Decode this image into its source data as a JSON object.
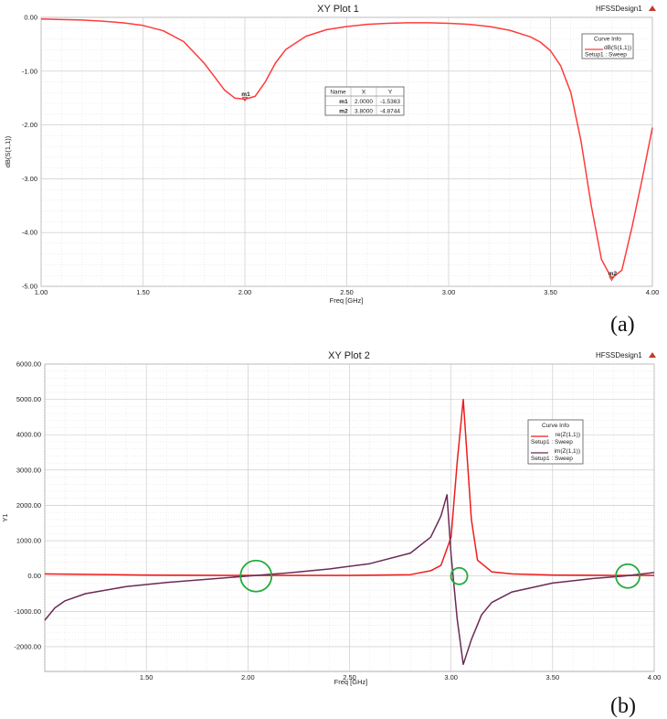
{
  "chart_data": [
    {
      "type": "line",
      "title": "XY Plot 1",
      "design": "HFSSDesign1",
      "xlabel": "Freq [GHz]",
      "ylabel": "dB(S(1,1))",
      "xlim": [
        1.0,
        4.0
      ],
      "ylim": [
        -5.0,
        0.0
      ],
      "xticks": [
        1.0,
        1.5,
        2.0,
        2.5,
        3.0,
        3.5,
        4.0
      ],
      "xtick_labels": [
        "1.00",
        "1.50",
        "2.00",
        "2.50",
        "3.00",
        "3.50",
        "4.00"
      ],
      "yticks": [
        0.0,
        -1.0,
        -2.0,
        -3.0,
        -4.0,
        -5.0
      ],
      "ytick_labels": [
        "0.00",
        "-1.00",
        "-2.00",
        "-3.00",
        "-4.00",
        "-5.00"
      ],
      "grid": true,
      "legend_title": "Curve Info",
      "legend_placement": "top-right",
      "series": [
        {
          "name": "dB(S(1,1))",
          "sub": "Setup1 : Sweep",
          "color": "#ff3b3b",
          "x": [
            1.0,
            1.1,
            1.2,
            1.3,
            1.4,
            1.5,
            1.6,
            1.7,
            1.8,
            1.85,
            1.9,
            1.95,
            2.0,
            2.05,
            2.1,
            2.15,
            2.2,
            2.3,
            2.4,
            2.5,
            2.6,
            2.7,
            2.8,
            2.9,
            3.0,
            3.1,
            3.2,
            3.3,
            3.4,
            3.45,
            3.5,
            3.55,
            3.6,
            3.65,
            3.7,
            3.75,
            3.8,
            3.85,
            3.9,
            3.95,
            4.0
          ],
          "y": [
            -0.03,
            -0.04,
            -0.05,
            -0.07,
            -0.1,
            -0.15,
            -0.25,
            -0.45,
            -0.85,
            -1.1,
            -1.35,
            -1.5,
            -1.52,
            -1.47,
            -1.2,
            -0.85,
            -0.6,
            -0.35,
            -0.23,
            -0.17,
            -0.13,
            -0.11,
            -0.1,
            -0.1,
            -0.11,
            -0.13,
            -0.17,
            -0.24,
            -0.36,
            -0.46,
            -0.62,
            -0.9,
            -1.4,
            -2.3,
            -3.5,
            -4.5,
            -4.85,
            -4.7,
            -3.9,
            -3.0,
            -2.05
          ]
        }
      ],
      "markers": [
        {
          "name": "m1",
          "x": 2.0,
          "y": -1.5363,
          "x_label": "2.0000",
          "y_label": "-1.5363"
        },
        {
          "name": "m2",
          "x": 3.8,
          "y": -4.8744,
          "x_label": "3.8000",
          "y_label": "-4.8744"
        }
      ],
      "marker_table": {
        "headers": [
          "Name",
          "X",
          "Y"
        ]
      }
    },
    {
      "type": "line",
      "title": "XY Plot 2",
      "design": "HFSSDesign1",
      "xlabel": "Freq [GHz]",
      "ylabel": "Y1",
      "xlim": [
        1.0,
        4.0
      ],
      "ylim": [
        -2700,
        6000
      ],
      "xticks": [
        1.5,
        2.0,
        2.5,
        3.0,
        3.5,
        4.0
      ],
      "xtick_labels": [
        "1.50",
        "2.00",
        "2.50",
        "3.00",
        "3.50",
        "4.00"
      ],
      "yticks": [
        6000,
        5000,
        4000,
        3000,
        2000,
        1000,
        0,
        -1000,
        -2000
      ],
      "ytick_labels": [
        "6000.00",
        "5000.00",
        "4000.00",
        "3000.00",
        "2000.00",
        "1000.00",
        "0.00",
        "-1000.00",
        "-2000.00"
      ],
      "grid": true,
      "legend_title": "Curve Info",
      "legend_placement": "top-right",
      "series": [
        {
          "name": "re(Z(1,1))",
          "sub": "Setup1 : Sweep",
          "color": "#ee1c1c",
          "x": [
            1.0,
            1.5,
            2.0,
            2.5,
            2.8,
            2.9,
            2.95,
            3.0,
            3.03,
            3.06,
            3.1,
            3.13,
            3.2,
            3.3,
            3.5,
            3.8,
            4.0
          ],
          "y": [
            60,
            30,
            20,
            20,
            40,
            150,
            300,
            1100,
            3200,
            5000,
            1600,
            450,
            120,
            60,
            30,
            20,
            20
          ]
        },
        {
          "name": "im(Z(1,1))",
          "sub": "Setup1 : Sweep",
          "color": "#6b2a55",
          "x": [
            1.0,
            1.05,
            1.1,
            1.2,
            1.4,
            1.6,
            1.8,
            2.0,
            2.2,
            2.4,
            2.6,
            2.8,
            2.9,
            2.95,
            2.98,
            3.0,
            3.03,
            3.06,
            3.1,
            3.15,
            3.2,
            3.3,
            3.5,
            3.7,
            3.85,
            4.0
          ],
          "y": [
            -1250,
            -900,
            -700,
            -500,
            -300,
            -180,
            -90,
            0,
            90,
            200,
            350,
            650,
            1100,
            1700,
            2300,
            600,
            -1200,
            -2500,
            -1800,
            -1100,
            -750,
            -450,
            -200,
            -70,
            0,
            100
          ]
        }
      ],
      "highlight_circles": [
        {
          "x": 2.04,
          "y": 0
        },
        {
          "x": 3.04,
          "y": 0
        },
        {
          "x": 3.87,
          "y": 0
        }
      ],
      "highlight_color": "#22aa3a"
    }
  ],
  "panel_labels": [
    "(a)",
    "(b)"
  ]
}
